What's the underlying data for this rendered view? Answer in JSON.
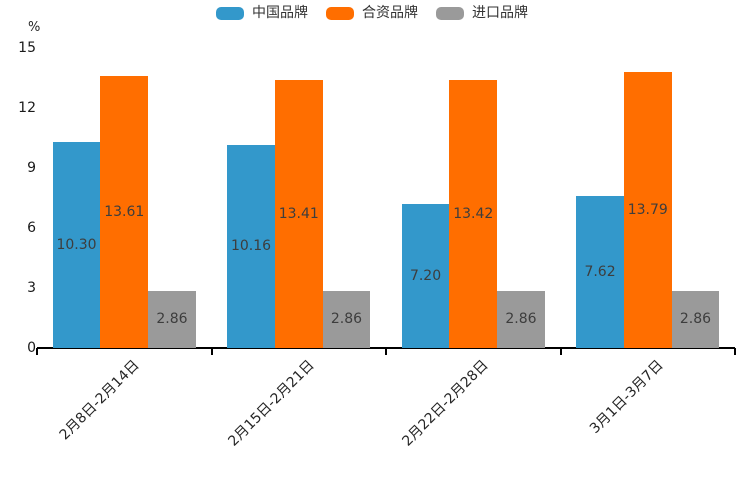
{
  "chart_data": {
    "type": "bar",
    "title": "",
    "unit_label": "%",
    "categories": [
      "2月8日-2月14日",
      "2月15日-2月21日",
      "2月22日-2月28日",
      "3月1日-3月7日"
    ],
    "series": [
      {
        "name": "中国品牌",
        "color": "#3398cb",
        "values": [
          10.3,
          10.16,
          7.2,
          7.62
        ]
      },
      {
        "name": "合资品牌",
        "color": "#ff6e00",
        "values": [
          13.61,
          13.41,
          13.42,
          13.79
        ]
      },
      {
        "name": "进口品牌",
        "color": "#9a9a9a",
        "values": [
          2.86,
          2.86,
          2.86,
          2.86
        ]
      }
    ],
    "y_ticks": [
      0,
      3,
      6,
      9,
      12,
      15
    ],
    "ylim": [
      0,
      15
    ],
    "legend_position": "top",
    "grid": false,
    "value_label_decimals": 2,
    "value_label_position": "inside-center"
  },
  "colors": {
    "background": "#ffffff",
    "axis": "#000000",
    "tick_text": "#1a1a1a",
    "value_text": "#3d3d3d",
    "legend_text": "#333333"
  }
}
